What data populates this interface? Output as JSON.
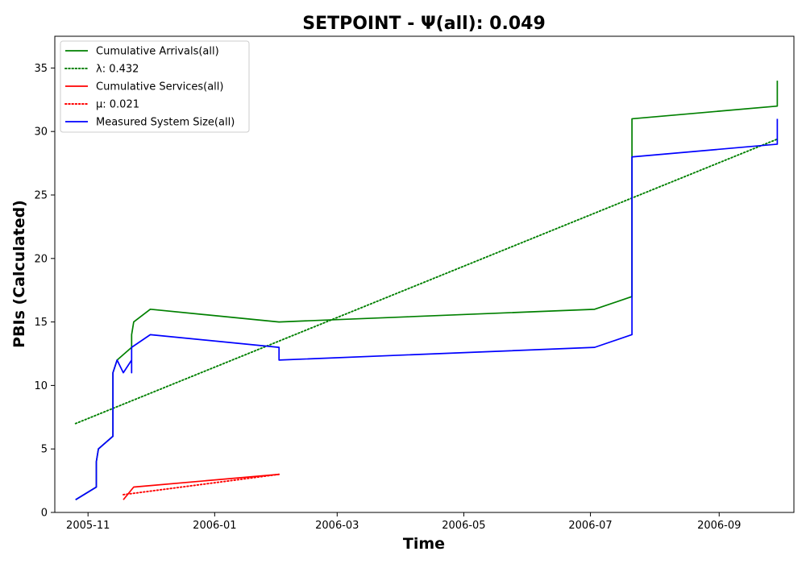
{
  "chart_data": {
    "type": "line",
    "title": "SETPOINT -  Ψ(all): 0.049",
    "xlabel": "Time",
    "ylabel": "PBIs (Calculated)",
    "xlim": [
      "2005-10-16",
      "2006-10-07"
    ],
    "ylim": [
      0,
      37.5
    ],
    "x_ticks": [
      "2005-11",
      "2006-01",
      "2006-03",
      "2006-05",
      "2006-07",
      "2006-09"
    ],
    "y_ticks": [
      0,
      5,
      10,
      15,
      20,
      25,
      30,
      35
    ],
    "grid": false,
    "legend_position": "top-left",
    "series": [
      {
        "name": "Cumulative Arrivals(all)",
        "style": "solid",
        "color": "#008000",
        "points": [
          [
            "2005-10-26",
            1
          ],
          [
            "2005-11-05",
            2
          ],
          [
            "2005-11-05",
            4
          ],
          [
            "2005-11-06",
            5
          ],
          [
            "2005-11-13",
            6
          ],
          [
            "2005-11-13",
            11
          ],
          [
            "2005-11-15",
            12
          ],
          [
            "2005-11-22",
            13
          ],
          [
            "2005-11-22",
            14
          ],
          [
            "2005-11-23",
            15
          ],
          [
            "2005-12-01",
            16
          ],
          [
            "2006-02-01",
            15
          ],
          [
            "2006-07-03",
            16
          ],
          [
            "2006-07-21",
            17
          ],
          [
            "2006-07-21",
            31
          ],
          [
            "2006-09-29",
            32
          ],
          [
            "2006-09-29",
            34
          ]
        ]
      },
      {
        "name": "λ: 0.432",
        "style": "dotted",
        "color": "#008000",
        "points": [
          [
            "2005-10-26",
            7
          ],
          [
            "2006-09-29",
            29.4
          ]
        ]
      },
      {
        "name": "Cumulative Services(all)",
        "style": "solid",
        "color": "#ff0000",
        "points": [
          [
            "2005-11-18",
            1
          ],
          [
            "2005-11-23",
            2
          ],
          [
            "2006-02-01",
            3
          ]
        ]
      },
      {
        "name": "μ: 0.021",
        "style": "dotted",
        "color": "#ff0000",
        "points": [
          [
            "2005-11-18",
            1.4
          ],
          [
            "2006-02-01",
            3
          ]
        ]
      },
      {
        "name": "Measured System Size(all)",
        "style": "solid",
        "color": "#0000ff",
        "points": [
          [
            "2005-10-26",
            1
          ],
          [
            "2005-11-05",
            2
          ],
          [
            "2005-11-05",
            4
          ],
          [
            "2005-11-06",
            5
          ],
          [
            "2005-11-13",
            6
          ],
          [
            "2005-11-13",
            11
          ],
          [
            "2005-11-15",
            12
          ],
          [
            "2005-11-18",
            11
          ],
          [
            "2005-11-22",
            12
          ],
          [
            "2005-11-22",
            11
          ],
          [
            "2005-11-22",
            13
          ],
          [
            "2005-12-01",
            14
          ],
          [
            "2006-02-01",
            13
          ],
          [
            "2006-02-01",
            12
          ],
          [
            "2006-07-03",
            13
          ],
          [
            "2006-07-21",
            14
          ],
          [
            "2006-07-21",
            28
          ],
          [
            "2006-09-29",
            29
          ],
          [
            "2006-09-29",
            31
          ]
        ]
      }
    ]
  }
}
